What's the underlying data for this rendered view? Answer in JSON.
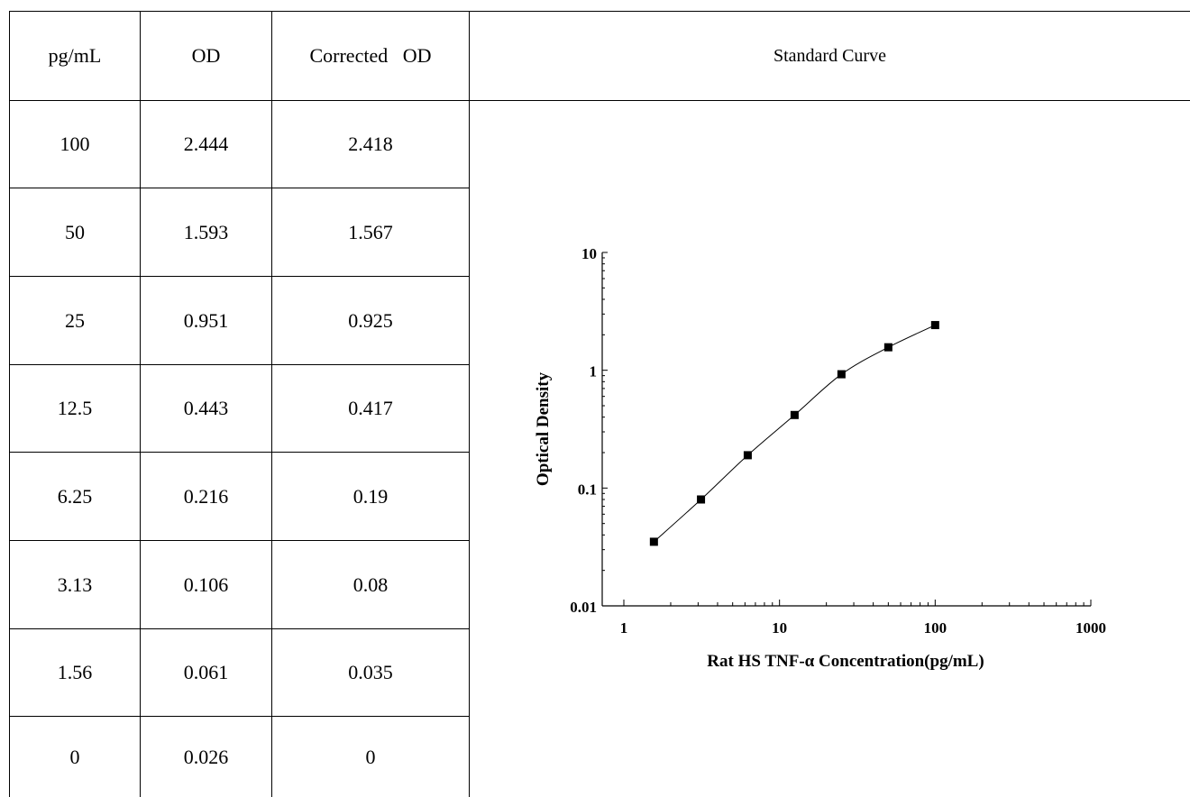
{
  "table": {
    "headers": [
      "pg/mL",
      "OD",
      "Corrected   OD"
    ],
    "rows": [
      [
        "100",
        "2.444",
        "2.418"
      ],
      [
        "50",
        "1.593",
        "1.567"
      ],
      [
        "25",
        "0.951",
        "0.925"
      ],
      [
        "12.5",
        "0.443",
        "0.417"
      ],
      [
        "6.25",
        "0.216",
        "0.19"
      ],
      [
        "3.13",
        "0.106",
        "0.08"
      ],
      [
        "1.56",
        "0.061",
        "0.035"
      ],
      [
        "0",
        "0.026",
        "0"
      ]
    ]
  },
  "chart_title": "Standard Curve",
  "chart_data": {
    "type": "line",
    "xlabel": "Rat HS TNF-α Concentration(pg/mL)",
    "ylabel": "Optical Density",
    "xscale": "log",
    "yscale": "log",
    "xlim": [
      1,
      1000
    ],
    "ylim": [
      0.01,
      10
    ],
    "xticks": [
      "1",
      "10",
      "100",
      "1000"
    ],
    "yticks": [
      "0.01",
      "0.1",
      "1",
      "10"
    ],
    "x": [
      1.56,
      3.13,
      6.25,
      12.5,
      25,
      50,
      100
    ],
    "y": [
      0.035,
      0.08,
      0.19,
      0.417,
      0.925,
      1.567,
      2.418
    ],
    "marker": "square",
    "grid": false,
    "line_color": "#000000"
  }
}
